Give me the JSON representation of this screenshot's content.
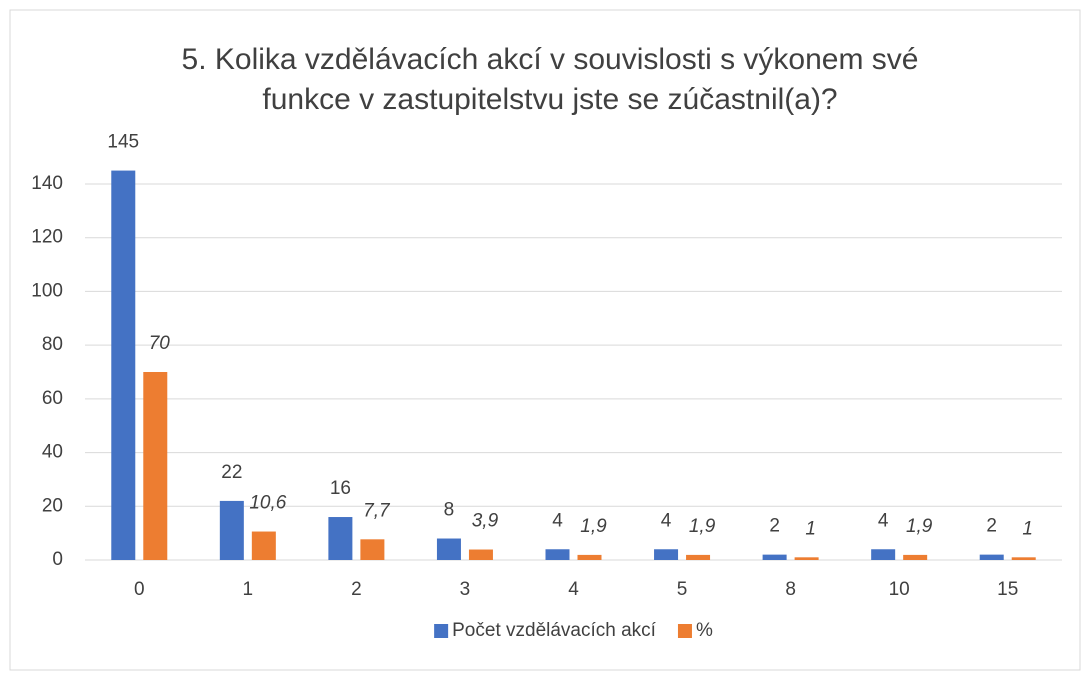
{
  "chart_data": {
    "type": "bar",
    "title": "5. Kolika vzdělávacích akcí v souvislosti s výkonem své funkce v zastupitelstvu jste se zúčastnil(a)?",
    "categories": [
      "0",
      "1",
      "2",
      "3",
      "4",
      "5",
      "8",
      "10",
      "15"
    ],
    "series": [
      {
        "name": "Počet vzdělávacích akcí",
        "color": "#4472c4",
        "values": [
          145,
          22,
          16,
          8,
          4,
          4,
          2,
          4,
          2
        ]
      },
      {
        "name": "%",
        "color": "#ed7d31",
        "values": [
          70,
          10.6,
          7.7,
          3.9,
          1.9,
          1.9,
          1,
          1.9,
          1
        ],
        "value_labels": [
          "70",
          "10,6",
          "7,7",
          "3,9",
          "1,9",
          "1,9",
          "1",
          "1,9",
          "1"
        ]
      }
    ],
    "ylim": [
      0,
      140
    ],
    "yticks": [
      0,
      20,
      40,
      60,
      80,
      100,
      120,
      140
    ],
    "grid": true,
    "legend": "bottom"
  }
}
